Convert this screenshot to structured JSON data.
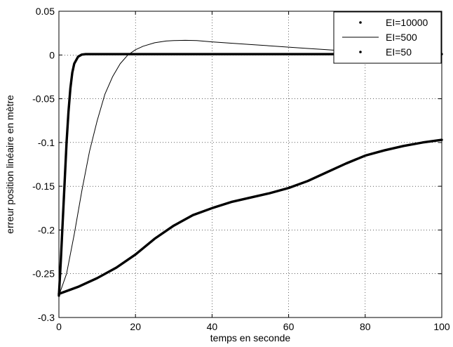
{
  "chart_data": {
    "type": "line",
    "title": "",
    "xlabel": "temps en seconde",
    "ylabel": "erreur position linéaire en mètre",
    "xlim": [
      0,
      100
    ],
    "ylim": [
      -0.3,
      0.05
    ],
    "xticks": [
      0,
      20,
      40,
      60,
      80,
      100
    ],
    "xtick_labels": [
      "0",
      "20",
      "40",
      "60",
      "80",
      "100"
    ],
    "yticks": [
      -0.3,
      -0.25,
      -0.2,
      -0.15,
      -0.1,
      -0.05,
      0,
      0.05
    ],
    "ytick_labels": [
      "-0.3",
      "-0.25",
      "-0.2",
      "-0.15",
      "-0.1",
      "-0.05",
      "0",
      "0.05"
    ],
    "grid": true,
    "legend_position": "top-right",
    "series": [
      {
        "name": "EI=10000",
        "style": "thick",
        "x": [
          0,
          0.5,
          1,
          1.5,
          2,
          2.5,
          3,
          3.5,
          4,
          5,
          6,
          7,
          8,
          10,
          20,
          40,
          60,
          80,
          100
        ],
        "y": [
          -0.275,
          -0.235,
          -0.19,
          -0.145,
          -0.1,
          -0.065,
          -0.038,
          -0.02,
          -0.01,
          -0.002,
          0.0005,
          0.001,
          0.001,
          0.001,
          0.001,
          0.001,
          0.001,
          0.001,
          0.001
        ]
      },
      {
        "name": "EI=500",
        "style": "thin",
        "x": [
          0,
          2,
          4,
          6,
          8,
          10,
          12,
          14,
          16,
          18,
          20,
          22,
          25,
          28,
          30,
          33,
          36,
          40,
          45,
          50,
          55,
          60,
          65,
          70,
          75,
          80,
          85,
          90,
          95,
          100
        ],
        "y": [
          -0.275,
          -0.25,
          -0.205,
          -0.155,
          -0.11,
          -0.075,
          -0.045,
          -0.025,
          -0.01,
          0.0,
          0.006,
          0.01,
          0.014,
          0.016,
          0.0165,
          0.0168,
          0.0165,
          0.015,
          0.0135,
          0.012,
          0.0105,
          0.009,
          0.0075,
          0.006,
          0.0045,
          0.003,
          0.002,
          0.0015,
          0.0012,
          0.001
        ]
      },
      {
        "name": "EI=50",
        "style": "thick",
        "x": [
          0,
          5,
          10,
          15,
          20,
          25,
          30,
          35,
          40,
          45,
          50,
          55,
          60,
          65,
          70,
          75,
          80,
          85,
          90,
          95,
          100
        ],
        "y": [
          -0.273,
          -0.265,
          -0.255,
          -0.243,
          -0.228,
          -0.21,
          -0.195,
          -0.183,
          -0.175,
          -0.168,
          -0.163,
          -0.158,
          -0.152,
          -0.144,
          -0.134,
          -0.124,
          -0.115,
          -0.109,
          -0.104,
          -0.1,
          -0.097
        ]
      }
    ]
  }
}
